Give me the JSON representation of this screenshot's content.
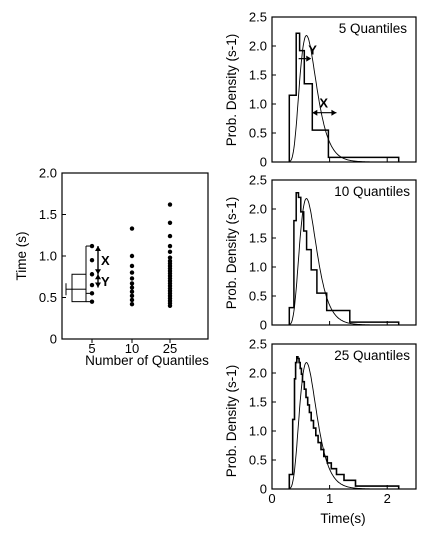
{
  "chart_data": [
    {
      "type": "scatter",
      "xlabel": "Number of Quantiles",
      "ylabel": "Time (s)",
      "ylim": [
        0,
        2.0
      ],
      "categories": [
        "5",
        "10",
        "25"
      ],
      "yticks": [
        "0",
        "0.5",
        "1.0",
        "1.5",
        "2.0"
      ],
      "annotations": [
        "X",
        "Y"
      ],
      "series": [
        {
          "category": "5",
          "values": [
            0.45,
            0.55,
            0.65,
            0.78,
            0.95,
            1.12
          ]
        },
        {
          "category": "10",
          "values": [
            0.42,
            0.47,
            0.52,
            0.57,
            0.62,
            0.67,
            0.73,
            0.8,
            0.88,
            1.0,
            1.33
          ]
        },
        {
          "category": "25",
          "values": [
            0.4,
            0.43,
            0.46,
            0.49,
            0.52,
            0.55,
            0.58,
            0.61,
            0.64,
            0.67,
            0.7,
            0.73,
            0.76,
            0.79,
            0.82,
            0.85,
            0.88,
            0.91,
            0.94,
            0.98,
            1.05,
            1.12,
            1.24,
            1.4,
            1.62
          ]
        }
      ],
      "box": {
        "q1": 0.45,
        "median": 0.6,
        "q3": 0.78,
        "min_whisker": 0.55,
        "max_whisker": 1.12
      }
    },
    {
      "type": "line",
      "title": "5 Quantiles",
      "ylabel": "Prob. Density (s-1)",
      "xlim": [
        0,
        2.5
      ],
      "ylim": [
        0,
        2.5
      ],
      "yticks": [
        "0",
        "0.5",
        "1.0",
        "1.5",
        "2.0",
        "2.5"
      ],
      "annotations": [
        "Y",
        "X"
      ],
      "histogram": {
        "edges": [
          0.3,
          0.42,
          0.48,
          0.56,
          0.7,
          0.98,
          2.2
        ],
        "heights": [
          1.15,
          2.22,
          1.92,
          1.35,
          0.55,
          0.08
        ]
      }
    },
    {
      "type": "line",
      "title": "10 Quantiles",
      "ylabel": "Prob. Density (s-1)",
      "xlim": [
        0,
        2.5
      ],
      "ylim": [
        0,
        2.5
      ],
      "yticks": [
        "0",
        "0.5",
        "1.0",
        "1.5",
        "2.0",
        "2.5"
      ],
      "histogram": {
        "edges": [
          0.3,
          0.38,
          0.42,
          0.46,
          0.5,
          0.55,
          0.6,
          0.68,
          0.78,
          0.95,
          1.35,
          2.2
        ],
        "heights": [
          0.3,
          1.8,
          2.28,
          2.2,
          1.95,
          1.62,
          1.3,
          0.95,
          0.55,
          0.25,
          0.05
        ]
      }
    },
    {
      "type": "line",
      "title": "25 Quantiles",
      "ylabel": "Prob. Density (s-1)",
      "xlabel": "Time(s)",
      "xlim": [
        0,
        2.5
      ],
      "ylim": [
        0,
        2.5
      ],
      "xticks": [
        "0",
        "1",
        "2"
      ],
      "yticks": [
        "0",
        "0.5",
        "1.0",
        "1.5",
        "2.0",
        "2.5"
      ],
      "histogram": {
        "edges": [
          0.3,
          0.36,
          0.39,
          0.41,
          0.43,
          0.45,
          0.47,
          0.49,
          0.51,
          0.53,
          0.56,
          0.59,
          0.62,
          0.65,
          0.68,
          0.72,
          0.76,
          0.8,
          0.85,
          0.9,
          0.96,
          1.03,
          1.12,
          1.25,
          1.45,
          2.2
        ],
        "heights": [
          0.25,
          1.2,
          1.9,
          2.18,
          2.28,
          2.25,
          2.18,
          2.08,
          1.98,
          1.85,
          1.72,
          1.58,
          1.45,
          1.32,
          1.18,
          1.05,
          0.92,
          0.8,
          0.68,
          0.56,
          0.45,
          0.35,
          0.25,
          0.15,
          0.05
        ]
      }
    }
  ]
}
